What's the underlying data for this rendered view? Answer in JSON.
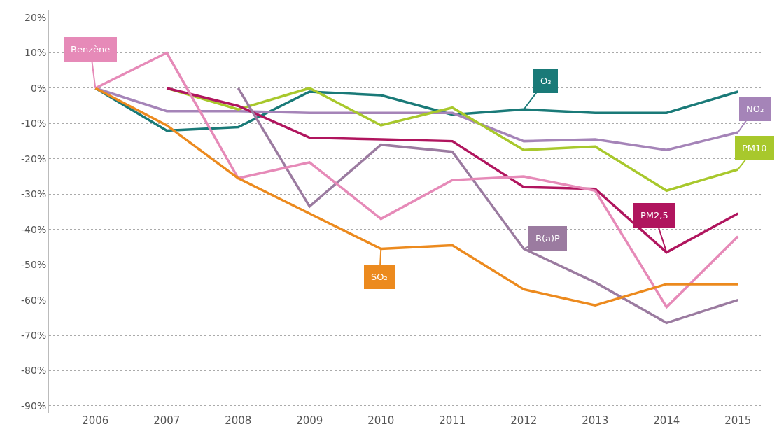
{
  "chart_data": {
    "type": "line",
    "x": [
      2006,
      2007,
      2008,
      2009,
      2010,
      2011,
      2012,
      2013,
      2014,
      2015
    ],
    "xlim": [
      2005.35,
      2015.35
    ],
    "xticks": [
      2006,
      2007,
      2008,
      2009,
      2010,
      2011,
      2012,
      2013,
      2014,
      2015
    ],
    "ylim": [
      -92,
      22
    ],
    "yticks": [
      {
        "value": 20,
        "label": "20%"
      },
      {
        "value": 10,
        "label": "10%"
      },
      {
        "value": 0,
        "label": "0%"
      },
      {
        "value": -10,
        "label": "-10%"
      },
      {
        "value": -20,
        "label": "-20%"
      },
      {
        "value": -30,
        "label": "-30%"
      },
      {
        "value": -40,
        "label": "-40%"
      },
      {
        "value": -50,
        "label": "-50%"
      },
      {
        "value": -60,
        "label": "-60%"
      },
      {
        "value": -70,
        "label": "-70%"
      },
      {
        "value": -80,
        "label": "-80%"
      },
      {
        "value": -90,
        "label": "-90%"
      }
    ],
    "grid": "y",
    "marker": "none",
    "line_style": "solid",
    "series": [
      {
        "color": "#1a7a78",
        "values": [
          0,
          -12,
          -11,
          -1,
          -2,
          -7.5,
          -6,
          -7,
          -7,
          -1
        ]
      },
      {
        "color": "#a584b8",
        "values": [
          0,
          -6.5,
          -6.5,
          -7,
          -7,
          -7,
          -15,
          -14.5,
          -17.5,
          -12.5
        ]
      },
      {
        "color": "#a8c82c",
        "values": [
          null,
          0,
          -6,
          0,
          -10.5,
          -5.5,
          -17.5,
          -16.5,
          -29,
          -23
        ]
      },
      {
        "color": "#b0155e",
        "values": [
          null,
          0,
          -5,
          -14,
          -14.5,
          -15,
          -28,
          -28.5,
          -46.5,
          -35.5
        ]
      },
      {
        "color": "#9b7ba0",
        "values": [
          null,
          null,
          0,
          -33.5,
          -16,
          -18,
          -45.5,
          -55,
          -66.5,
          -60
        ]
      },
      {
        "color": "#e68ab8",
        "values": [
          0,
          10,
          -25.5,
          -21,
          -37,
          -26,
          -25,
          -29,
          -62,
          -42
        ]
      },
      {
        "color": "#ec8a1e",
        "values": [
          0,
          -10.5,
          -25.5,
          -35.5,
          -45.5,
          -44.5,
          -57,
          -61.5,
          -55.5,
          -55.5
        ]
      }
    ],
    "annotations": [
      {
        "text": "O₃",
        "x": 2012,
        "y": -6
      },
      {
        "text": "NO₂",
        "x": 2015,
        "y": -12.5
      },
      {
        "text": "PM10",
        "x": 2015,
        "y": -23
      },
      {
        "text": "PM2,5",
        "x": 2014,
        "y": -46.5
      },
      {
        "text": "B(a)P",
        "x": 2012,
        "y": -45.5
      },
      {
        "text": "Benzène",
        "x": 2006,
        "y": 0
      },
      {
        "text": "SO₂",
        "x": 2010,
        "y": -45.5
      }
    ]
  }
}
